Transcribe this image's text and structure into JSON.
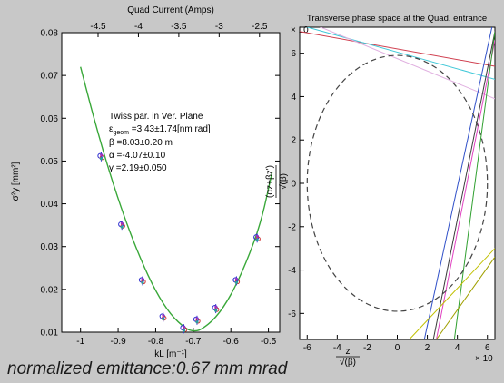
{
  "caption": "normalized emittance:0.67 mm mrad",
  "chart_data": [
    {
      "type": "scatter",
      "xlabel": "kL [m⁻¹]",
      "ylabel": "σ²y [mm²]",
      "top_axis_title": "Quad Current (Amps)",
      "xlim": [
        -1.05,
        -0.47
      ],
      "ylim": [
        0.01,
        0.08
      ],
      "xticks": [
        -1,
        -0.9,
        -0.8,
        -0.7,
        -0.6,
        -0.5
      ],
      "xtick_labels": [
        "-1",
        "-0.9",
        "-0.8",
        "-0.7",
        "-0.6",
        "-0.5"
      ],
      "yticks": [
        0.01,
        0.02,
        0.03,
        0.04,
        0.05,
        0.06,
        0.07,
        0.08
      ],
      "ytick_labels": [
        "0.01",
        "0.02",
        "0.03",
        "0.04",
        "0.05",
        "0.06",
        "0.07",
        "0.08"
      ],
      "top_xticks": [
        -4.5,
        -4,
        -3.5,
        -3,
        -2.5
      ],
      "top_xtick_labels": [
        "-4.5",
        "-4",
        "-3.5",
        "-3",
        "-2.5"
      ],
      "top_xlim": [
        -4.95,
        -2.25
      ],
      "fit_curve": {
        "color": "#3aa83a",
        "x": [
          -1.0,
          -0.96,
          -0.92,
          -0.88,
          -0.84,
          -0.8,
          -0.76,
          -0.72,
          -0.7,
          -0.68,
          -0.64,
          -0.6,
          -0.56,
          -0.52,
          -0.49
        ],
        "y": [
          0.072,
          0.0585,
          0.0465,
          0.036,
          0.027,
          0.0195,
          0.014,
          0.0108,
          0.0102,
          0.0105,
          0.0133,
          0.0185,
          0.026,
          0.0355,
          0.0475
        ]
      },
      "points": [
        {
          "x": -0.945,
          "y": 0.051
        },
        {
          "x": -0.89,
          "y": 0.035
        },
        {
          "x": -0.835,
          "y": 0.022
        },
        {
          "x": -0.78,
          "y": 0.0135
        },
        {
          "x": -0.725,
          "y": 0.0108
        },
        {
          "x": -0.69,
          "y": 0.0128
        },
        {
          "x": -0.64,
          "y": 0.0155
        },
        {
          "x": -0.585,
          "y": 0.022
        },
        {
          "x": -0.53,
          "y": 0.032
        }
      ],
      "marker_colors": [
        "#3030d0",
        "#d03030",
        "#2aa0a0",
        "#a030c0"
      ],
      "annotation": {
        "title": "Twiss par. in Ver. Plane",
        "lines": [
          {
            "main": "ε",
            "sub": "geom",
            "rest": " =3.43±1.74[nm rad]"
          },
          {
            "main": "β =8.03±0.20 m",
            "sub": "",
            "rest": ""
          },
          {
            "main": "α =-4.07±0.10",
            "sub": "",
            "rest": ""
          },
          {
            "main": "γ =2.19±0.050",
            "sub": "",
            "rest": ""
          }
        ]
      }
    },
    {
      "type": "line",
      "title": "Transverse phase space at the Quad. entrance",
      "xlim": [
        -6.5,
        6.5
      ],
      "ylim": [
        -7.2,
        7.2
      ],
      "xticks": [
        -6,
        -4,
        -2,
        0,
        2,
        4,
        6
      ],
      "xtick_labels": [
        "-6",
        "-4",
        "-2",
        "0",
        "2",
        "4",
        "6"
      ],
      "yticks": [
        -6,
        -4,
        -2,
        0,
        2,
        4,
        6
      ],
      "ytick_labels": [
        "-6",
        "-4",
        "-2",
        "0",
        "2",
        "4",
        "6"
      ],
      "exponent_top": "× 10",
      "exponent_bottom": "× 10",
      "ylabel_frac_num": "(αz+βz')",
      "ylabel_frac_den": "√(β)",
      "xlabel_frac_num": "z",
      "xlabel_frac_den": "√(β)",
      "ellipse": {
        "center": [
          0,
          0
        ],
        "rx": 6.0,
        "ry": 5.9,
        "style": "dashed"
      },
      "lines": [
        {
          "color": "#d04050",
          "x": [
            -6.5,
            6.5
          ],
          "y": [
            7.0,
            5.4
          ]
        },
        {
          "color": "#40c8d8",
          "x": [
            -6.5,
            6.5
          ],
          "y": [
            7.3,
            4.8
          ]
        },
        {
          "color": "#e0b0e0",
          "x": [
            -6.5,
            6.5
          ],
          "y": [
            7.6,
            3.9
          ]
        },
        {
          "color": "#3a3a3a",
          "x": [
            2.4,
            6.5
          ],
          "y": [
            -7.2,
            7.0
          ]
        },
        {
          "color": "#e040c0",
          "x": [
            2.6,
            6.5
          ],
          "y": [
            -7.2,
            6.6
          ]
        },
        {
          "color": "#3050c8",
          "x": [
            1.8,
            6.3
          ],
          "y": [
            -7.2,
            7.2
          ]
        },
        {
          "color": "#30a030",
          "x": [
            3.8,
            6.5
          ],
          "y": [
            -7.2,
            7.0
          ]
        },
        {
          "color": "#c0c000",
          "x": [
            0.8,
            6.5
          ],
          "y": [
            -7.2,
            -3.0
          ]
        },
        {
          "color": "#a0a000",
          "x": [
            2.6,
            6.5
          ],
          "y": [
            -7.2,
            -3.4
          ]
        }
      ]
    }
  ]
}
